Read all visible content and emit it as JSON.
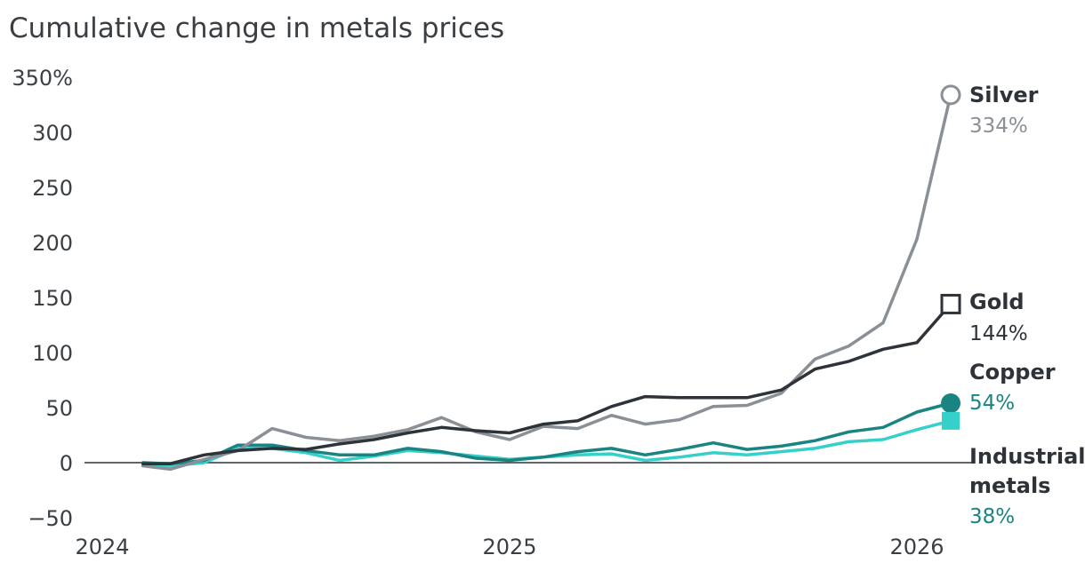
{
  "chart_data": {
    "type": "line",
    "title": "Cumulative change in metals prices",
    "ylabel": "",
    "xlabel": "",
    "ylim": [
      -50,
      350
    ],
    "yticks": [
      {
        "value": 350,
        "label": "350%"
      },
      {
        "value": 300,
        "label": "300"
      },
      {
        "value": 250,
        "label": "250"
      },
      {
        "value": 200,
        "label": "200"
      },
      {
        "value": 150,
        "label": "150"
      },
      {
        "value": 100,
        "label": "100"
      },
      {
        "value": 50,
        "label": "50"
      },
      {
        "value": 0,
        "label": "0"
      },
      {
        "value": -50,
        "label": "−50"
      }
    ],
    "xticks": [
      {
        "value": 2024,
        "label": "2024"
      },
      {
        "value": 2025,
        "label": "2025"
      },
      {
        "value": 2026,
        "label": "2026"
      }
    ],
    "x": [
      2024.1,
      2024.167,
      2024.25,
      2024.333,
      2024.417,
      2024.5,
      2024.583,
      2024.667,
      2024.75,
      2024.833,
      2024.917,
      2025.0,
      2025.083,
      2025.167,
      2025.25,
      2025.333,
      2025.417,
      2025.5,
      2025.583,
      2025.667,
      2025.75,
      2025.833,
      2025.917,
      2026.0,
      2026.083
    ],
    "series": [
      {
        "name": "Silver",
        "value_label": "334%",
        "color": "#8a9096",
        "marker": "open-circle",
        "values": [
          -3,
          -6,
          3,
          11,
          31,
          23,
          20,
          24,
          30,
          41,
          28,
          21,
          33,
          31,
          43,
          35,
          39,
          51,
          52,
          63,
          94,
          106,
          127,
          203,
          334
        ]
      },
      {
        "name": "Gold",
        "value_label": "144%",
        "color": "#2d3339",
        "marker": "open-square",
        "values": [
          -1,
          -1,
          7,
          11,
          13,
          12,
          17,
          21,
          27,
          32,
          29,
          27,
          35,
          38,
          51,
          60,
          59,
          59,
          59,
          66,
          85,
          92,
          103,
          109,
          144
        ]
      },
      {
        "name": "Copper",
        "value_label": "54%",
        "color": "#1a8482",
        "marker": "filled-circle",
        "values": [
          0,
          -1,
          2,
          16,
          16,
          11,
          7,
          7,
          13,
          10,
          4,
          2,
          5,
          10,
          13,
          7,
          12,
          18,
          12,
          15,
          20,
          28,
          32,
          46,
          54
        ]
      },
      {
        "name": "Industrial metals",
        "name_lines": [
          "Industrial",
          "metals"
        ],
        "value_label": "38%",
        "value_color": "#1a8482",
        "color": "#35d0c9",
        "marker": "filled-square",
        "values": [
          -2,
          -3,
          0,
          13,
          13,
          9,
          2,
          6,
          11,
          9,
          6,
          3,
          5,
          7,
          8,
          2,
          5,
          9,
          7,
          10,
          13,
          19,
          21,
          30,
          38
        ]
      }
    ],
    "grid": false
  }
}
